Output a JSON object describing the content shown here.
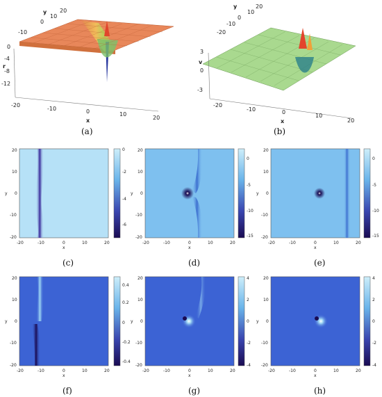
{
  "panels": {
    "a": {
      "caption": "(a)",
      "var_label": "r",
      "x_label": "x",
      "y_label": "y",
      "x_ticks": [
        "-20",
        "-10",
        "0",
        "10",
        "20"
      ],
      "y_ticks": [
        "-10",
        "0",
        "10",
        "20"
      ],
      "z_ticks": [
        "0",
        "-4",
        "-8",
        "-12"
      ]
    },
    "b": {
      "caption": "(b)",
      "var_label": "v",
      "x_label": "x",
      "y_label": "y",
      "x_ticks": [
        "-20",
        "-10",
        "0",
        "10",
        "20"
      ],
      "y_ticks": [
        "-20",
        "-10",
        "0",
        "10",
        "20"
      ],
      "z_ticks": [
        "3",
        "0",
        "-3"
      ]
    },
    "c": {
      "caption": "(c)",
      "x_label": "x",
      "y_label": "y",
      "x_ticks": [
        "-20",
        "-10",
        "0",
        "10",
        "20"
      ],
      "y_ticks": [
        "20",
        "10",
        "0",
        "-10",
        "-20"
      ],
      "colorbar_ticks": [
        "0",
        "-2",
        "-4",
        "-6"
      ]
    },
    "d": {
      "caption": "(d)",
      "x_label": "x",
      "y_label": "y",
      "x_ticks": [
        "-20",
        "-10",
        "0",
        "10",
        "20"
      ],
      "y_ticks": [
        "20",
        "10",
        "0",
        "-10",
        "-20"
      ],
      "colorbar_ticks": [
        "0",
        "-5",
        "-10",
        "-15"
      ]
    },
    "e": {
      "caption": "(e)",
      "x_label": "x",
      "y_label": "y",
      "x_ticks": [
        "-20",
        "-10",
        "0",
        "10",
        "20"
      ],
      "y_ticks": [
        "20",
        "10",
        "0",
        "-10",
        "-20"
      ],
      "colorbar_ticks": [
        "0",
        "-5",
        "-10",
        "-15"
      ]
    },
    "f": {
      "caption": "(f)",
      "x_label": "x",
      "y_label": "y",
      "x_ticks": [
        "-20",
        "-10",
        "0",
        "10",
        "20"
      ],
      "y_ticks": [
        "20",
        "10",
        "0",
        "-10",
        "-20"
      ],
      "colorbar_ticks": [
        "0.4",
        "0.2",
        "0",
        "-0.2",
        "-0.4"
      ]
    },
    "g": {
      "caption": "(g)",
      "x_label": "x",
      "y_label": "y",
      "x_ticks": [
        "-20",
        "-10",
        "0",
        "10",
        "20"
      ],
      "y_ticks": [
        "20",
        "10",
        "0",
        "-10",
        "-20"
      ],
      "colorbar_ticks": [
        "4",
        "2",
        "0",
        "-2",
        "-4"
      ]
    },
    "h": {
      "caption": "(h)",
      "x_label": "x",
      "y_label": "y",
      "x_ticks": [
        "-20",
        "-10",
        "0",
        "10",
        "20"
      ],
      "y_ticks": [
        "20",
        "10",
        "0",
        "-10",
        "-20"
      ],
      "colorbar_ticks": [
        "4",
        "2",
        "0",
        "-2",
        "-4"
      ]
    }
  },
  "colors": {
    "surface_a": "#e8875a",
    "surface_b": "#a9d98f",
    "density_light": "#b6e1f7",
    "density_mid": "#5fa7e6",
    "density_dark": "#2d2591",
    "density_deep": "#140b4d"
  }
}
